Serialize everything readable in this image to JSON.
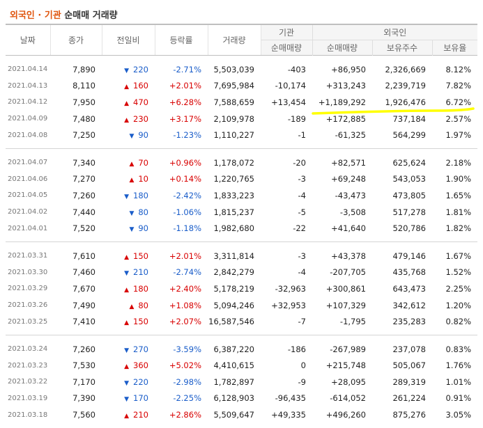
{
  "title": {
    "highlight": "외국인 · 기관",
    "rest": " 순매매 거래량"
  },
  "headers": {
    "date": "날짜",
    "close": "종가",
    "change": "전일비",
    "rate": "등락률",
    "volume": "거래량",
    "inst_group": "기관",
    "inst_net": "순매매량",
    "foreign_group": "외국인",
    "foreign_net": "순매매량",
    "foreign_hold": "보유주수",
    "foreign_ratio": "보유율"
  },
  "colors": {
    "up": "#d80000",
    "down": "#1a5dc9",
    "title_accent": "#e0560f",
    "marker": "#ffff00"
  },
  "groups": [
    [
      {
        "date": "2021.04.14",
        "close": "7,890",
        "dir": "down",
        "chg": "220",
        "rate": "-2.71%",
        "vol": "5,503,039",
        "inst": "-403",
        "frn": "+86,950",
        "hold": "2,326,669",
        "ratio": "8.12%"
      },
      {
        "date": "2021.04.13",
        "close": "8,110",
        "dir": "up",
        "chg": "160",
        "rate": "+2.01%",
        "vol": "7,695,984",
        "inst": "-10,174",
        "frn": "+313,243",
        "hold": "2,239,719",
        "ratio": "7.82%"
      },
      {
        "date": "2021.04.12",
        "close": "7,950",
        "dir": "up",
        "chg": "470",
        "rate": "+6.28%",
        "vol": "7,588,659",
        "inst": "+13,454",
        "frn": "+1,189,292",
        "hold": "1,926,476",
        "ratio": "6.72%"
      },
      {
        "date": "2021.04.09",
        "close": "7,480",
        "dir": "up",
        "chg": "230",
        "rate": "+3.17%",
        "vol": "2,109,978",
        "inst": "-189",
        "frn": "+172,885",
        "hold": "737,184",
        "ratio": "2.57%"
      },
      {
        "date": "2021.04.08",
        "close": "7,250",
        "dir": "down",
        "chg": "90",
        "rate": "-1.23%",
        "vol": "1,110,227",
        "inst": "-1",
        "frn": "-61,325",
        "hold": "564,299",
        "ratio": "1.97%"
      }
    ],
    [
      {
        "date": "2021.04.07",
        "close": "7,340",
        "dir": "up",
        "chg": "70",
        "rate": "+0.96%",
        "vol": "1,178,072",
        "inst": "-20",
        "frn": "+82,571",
        "hold": "625,624",
        "ratio": "2.18%"
      },
      {
        "date": "2021.04.06",
        "close": "7,270",
        "dir": "up",
        "chg": "10",
        "rate": "+0.14%",
        "vol": "1,220,765",
        "inst": "-3",
        "frn": "+69,248",
        "hold": "543,053",
        "ratio": "1.90%"
      },
      {
        "date": "2021.04.05",
        "close": "7,260",
        "dir": "down",
        "chg": "180",
        "rate": "-2.42%",
        "vol": "1,833,223",
        "inst": "-4",
        "frn": "-43,473",
        "hold": "473,805",
        "ratio": "1.65%"
      },
      {
        "date": "2021.04.02",
        "close": "7,440",
        "dir": "down",
        "chg": "80",
        "rate": "-1.06%",
        "vol": "1,815,237",
        "inst": "-5",
        "frn": "-3,508",
        "hold": "517,278",
        "ratio": "1.81%"
      },
      {
        "date": "2021.04.01",
        "close": "7,520",
        "dir": "down",
        "chg": "90",
        "rate": "-1.18%",
        "vol": "1,982,680",
        "inst": "-22",
        "frn": "+41,640",
        "hold": "520,786",
        "ratio": "1.82%"
      }
    ],
    [
      {
        "date": "2021.03.31",
        "close": "7,610",
        "dir": "up",
        "chg": "150",
        "rate": "+2.01%",
        "vol": "3,311,814",
        "inst": "-3",
        "frn": "+43,378",
        "hold": "479,146",
        "ratio": "1.67%"
      },
      {
        "date": "2021.03.30",
        "close": "7,460",
        "dir": "down",
        "chg": "210",
        "rate": "-2.74%",
        "vol": "2,842,279",
        "inst": "-4",
        "frn": "-207,705",
        "hold": "435,768",
        "ratio": "1.52%"
      },
      {
        "date": "2021.03.29",
        "close": "7,670",
        "dir": "up",
        "chg": "180",
        "rate": "+2.40%",
        "vol": "5,178,219",
        "inst": "-32,963",
        "frn": "+300,861",
        "hold": "643,473",
        "ratio": "2.25%"
      },
      {
        "date": "2021.03.26",
        "close": "7,490",
        "dir": "up",
        "chg": "80",
        "rate": "+1.08%",
        "vol": "5,094,246",
        "inst": "+32,953",
        "frn": "+107,329",
        "hold": "342,612",
        "ratio": "1.20%"
      },
      {
        "date": "2021.03.25",
        "close": "7,410",
        "dir": "up",
        "chg": "150",
        "rate": "+2.07%",
        "vol": "16,587,546",
        "inst": "-7",
        "frn": "-1,795",
        "hold": "235,283",
        "ratio": "0.82%"
      }
    ],
    [
      {
        "date": "2021.03.24",
        "close": "7,260",
        "dir": "down",
        "chg": "270",
        "rate": "-3.59%",
        "vol": "6,387,220",
        "inst": "-186",
        "frn": "-267,989",
        "hold": "237,078",
        "ratio": "0.83%"
      },
      {
        "date": "2021.03.23",
        "close": "7,530",
        "dir": "up",
        "chg": "360",
        "rate": "+5.02%",
        "vol": "4,410,615",
        "inst": "0",
        "frn": "+215,748",
        "hold": "505,067",
        "ratio": "1.76%"
      },
      {
        "date": "2021.03.22",
        "close": "7,170",
        "dir": "down",
        "chg": "220",
        "rate": "-2.98%",
        "vol": "1,782,897",
        "inst": "-9",
        "frn": "+28,095",
        "hold": "289,319",
        "ratio": "1.01%"
      },
      {
        "date": "2021.03.19",
        "close": "7,390",
        "dir": "down",
        "chg": "170",
        "rate": "-2.25%",
        "vol": "6,128,903",
        "inst": "-96,435",
        "frn": "-614,052",
        "hold": "261,224",
        "ratio": "0.91%"
      },
      {
        "date": "2021.03.18",
        "close": "7,560",
        "dir": "up",
        "chg": "210",
        "rate": "+2.86%",
        "vol": "5,509,647",
        "inst": "+49,335",
        "frn": "+496,260",
        "hold": "875,276",
        "ratio": "3.05%"
      }
    ]
  ]
}
